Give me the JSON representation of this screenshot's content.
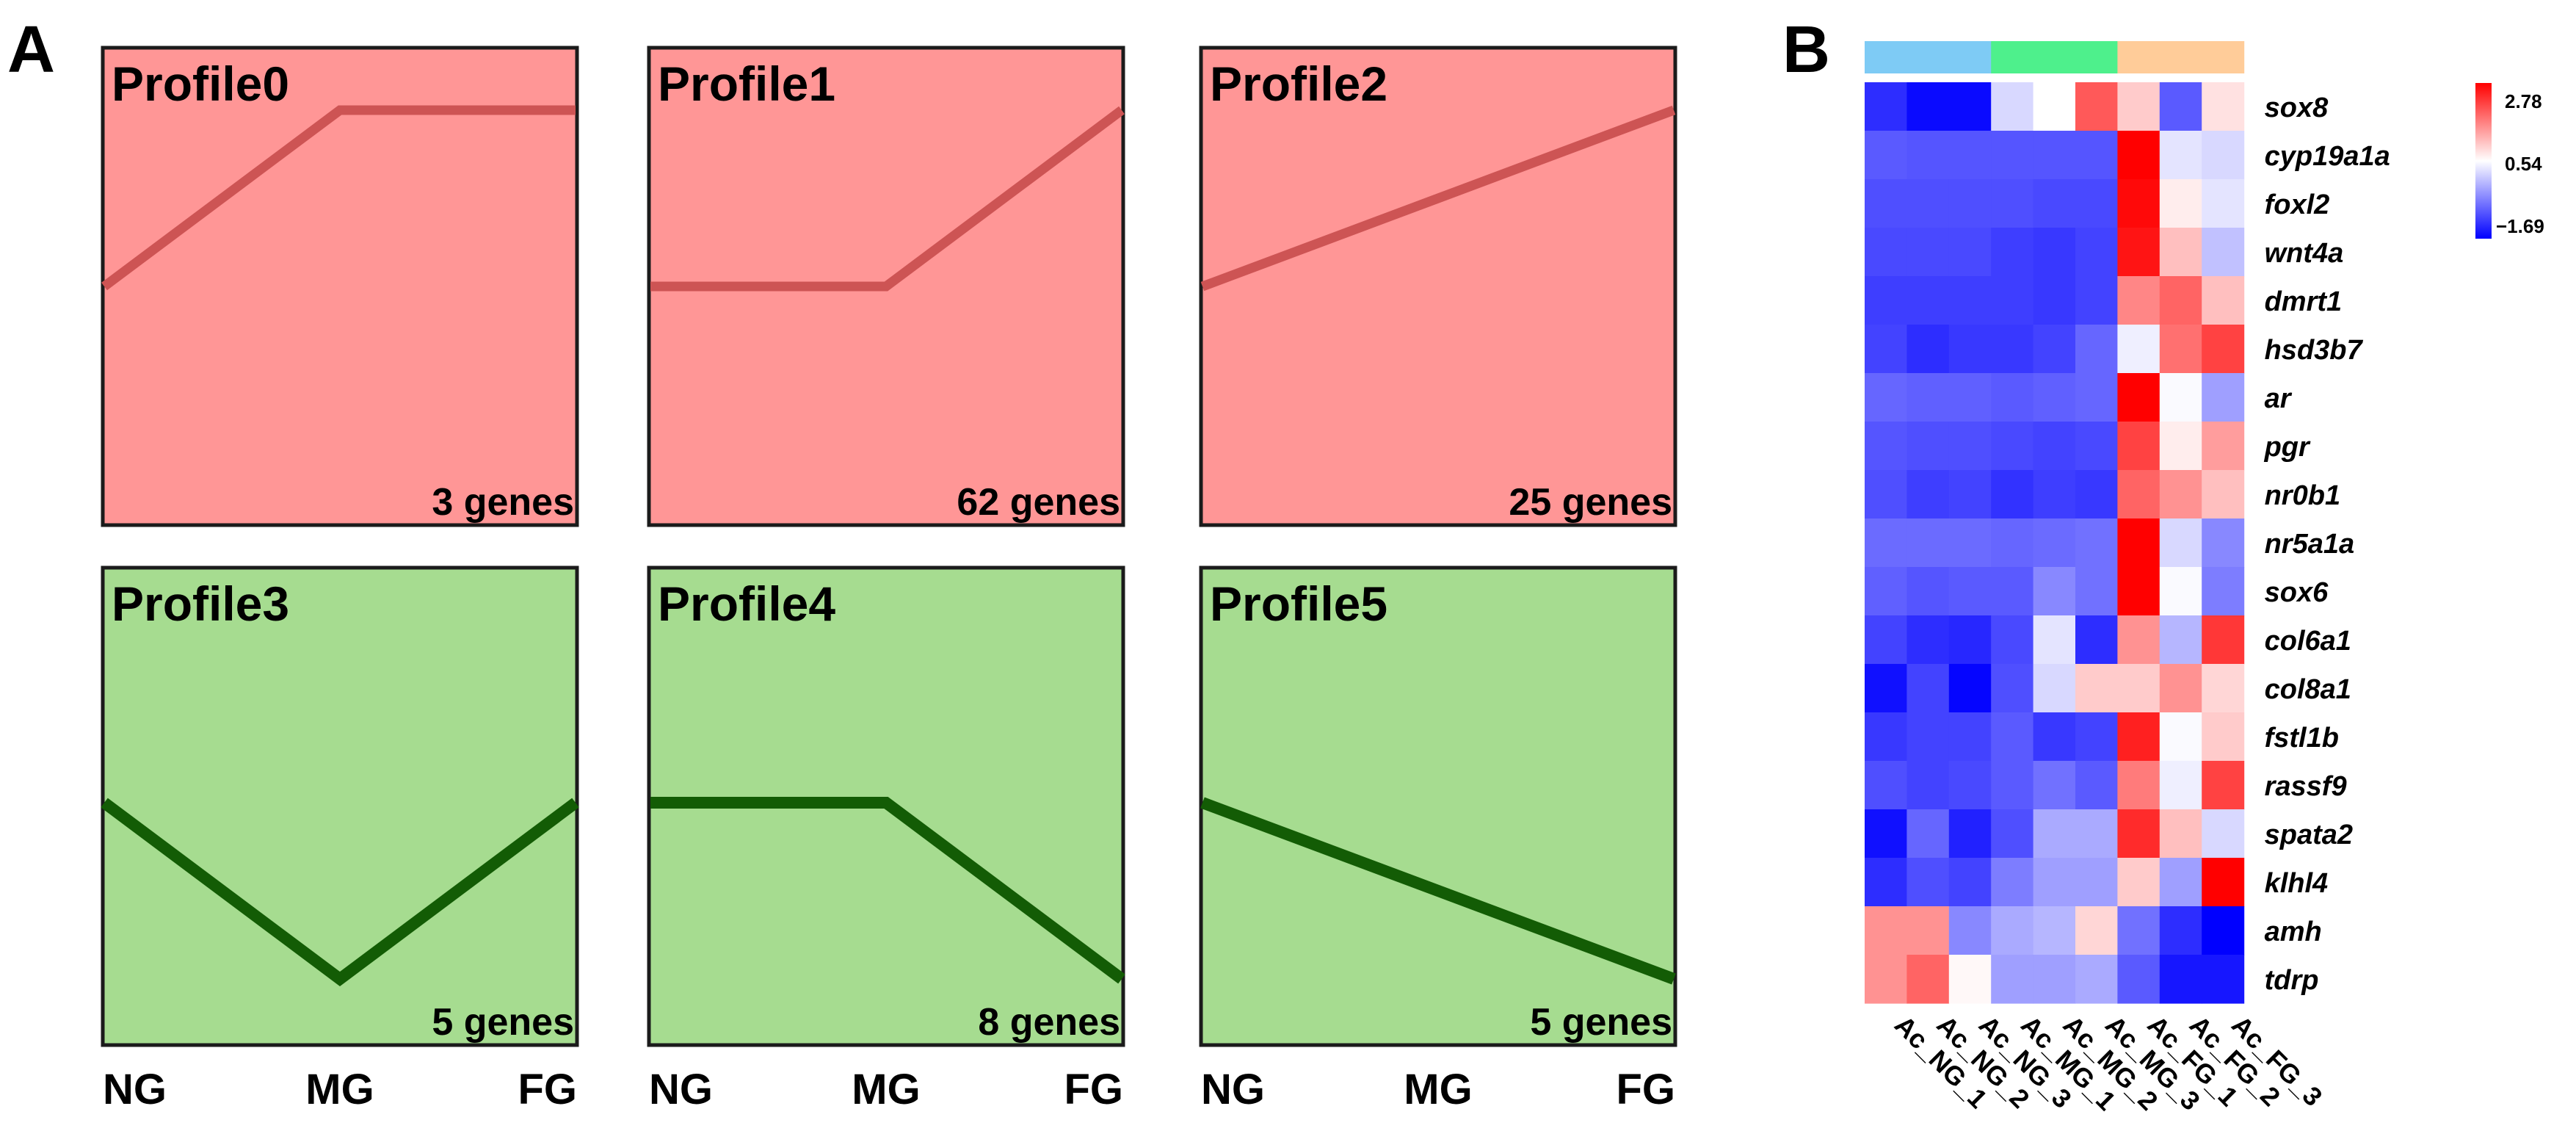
{
  "panels": {
    "a_label": "A",
    "b_label": "B"
  },
  "chart_data": [
    {
      "type": "line",
      "panel": "A",
      "x": [
        "NG",
        "MG",
        "FG"
      ],
      "profiles": [
        {
          "title": "Profile0",
          "count_label": "3 genes",
          "values": [
            0,
            1,
            1
          ],
          "group": "up"
        },
        {
          "title": "Profile1",
          "count_label": "62 genes",
          "values": [
            0,
            0,
            1
          ],
          "group": "up"
        },
        {
          "title": "Profile2",
          "count_label": "25 genes",
          "values": [
            0,
            0.5,
            1
          ],
          "group": "up"
        },
        {
          "title": "Profile3",
          "count_label": "5 genes",
          "values": [
            0,
            -1,
            0
          ],
          "group": "down"
        },
        {
          "title": "Profile4",
          "count_label": "8 genes",
          "values": [
            0,
            0,
            -1
          ],
          "group": "down"
        },
        {
          "title": "Profile5",
          "count_label": "5 genes",
          "values": [
            0,
            -0.5,
            -1
          ],
          "group": "down"
        }
      ],
      "colors": {
        "up_fill": "#ff9696",
        "up_line": "#cd5454",
        "down_fill": "#a6dc90",
        "down_line": "#135c05",
        "frame": "#1b1b1b"
      }
    },
    {
      "type": "heatmap",
      "panel": "B",
      "samples": [
        "Ac_NG_1",
        "Ac_NG_2",
        "Ac_NG_3",
        "Ac_MG_1",
        "Ac_MG_2",
        "Ac_MG_3",
        "Ac_FG_1",
        "Ac_FG_2",
        "Ac_FG_3"
      ],
      "sample_groups": [
        "NG",
        "NG",
        "NG",
        "MG",
        "MG",
        "MG",
        "FG",
        "FG",
        "FG"
      ],
      "group_colors": {
        "NG": "#7ecbf5",
        "MG": "#4ef08c",
        "FG": "#ffcc99"
      },
      "genes": [
        "sox8",
        "cyp19a1a",
        "foxl2",
        "wnt4a",
        "dmrt1",
        "hsd3b7",
        "ar",
        "pgr",
        "nr0b1",
        "nr5a1a",
        "sox6",
        "col6a1",
        "col8a1",
        "fstl1b",
        "rassf9",
        "spata2",
        "klhl4",
        "amh",
        "tdrp"
      ],
      "values": [
        [
          -1.3,
          -1.6,
          -1.6,
          0.2,
          0.54,
          2.0,
          1.0,
          -0.9,
          0.8
        ],
        [
          -0.9,
          -0.95,
          -0.95,
          -0.95,
          -0.95,
          -0.95,
          2.78,
          0.3,
          0.2
        ],
        [
          -1.0,
          -1.0,
          -1.0,
          -1.0,
          -1.05,
          -1.05,
          2.7,
          0.7,
          0.3
        ],
        [
          -1.05,
          -1.05,
          -1.05,
          -1.15,
          -1.2,
          -1.1,
          2.6,
          1.1,
          0.0
        ],
        [
          -1.15,
          -1.15,
          -1.15,
          -1.15,
          -1.2,
          -1.1,
          1.6,
          1.9,
          1.1
        ],
        [
          -1.1,
          -1.3,
          -1.2,
          -1.2,
          -1.1,
          -0.8,
          0.4,
          1.8,
          2.2
        ],
        [
          -0.8,
          -0.85,
          -0.85,
          -0.9,
          -0.85,
          -0.8,
          2.78,
          0.5,
          -0.3
        ],
        [
          -0.95,
          -1.0,
          -1.0,
          -1.05,
          -1.1,
          -1.05,
          2.2,
          0.7,
          1.4
        ],
        [
          -1.0,
          -1.15,
          -1.1,
          -1.25,
          -1.15,
          -1.2,
          1.9,
          1.5,
          1.1
        ],
        [
          -0.75,
          -0.75,
          -0.75,
          -0.8,
          -0.75,
          -0.7,
          2.78,
          0.2,
          -0.5
        ],
        [
          -0.85,
          -0.95,
          -0.9,
          -0.9,
          -0.5,
          -0.7,
          2.78,
          0.5,
          -0.6
        ],
        [
          -1.1,
          -1.3,
          -1.35,
          -1.05,
          0.3,
          -1.3,
          1.5,
          -0.1,
          2.3
        ],
        [
          -1.55,
          -1.1,
          -1.65,
          -1.0,
          0.2,
          1.0,
          1.0,
          1.5,
          0.9
        ],
        [
          -1.2,
          -1.1,
          -1.1,
          -0.9,
          -1.2,
          -1.1,
          2.5,
          0.5,
          1.0
        ],
        [
          -1.0,
          -1.1,
          -1.05,
          -0.9,
          -0.7,
          -0.9,
          1.7,
          0.4,
          2.2
        ],
        [
          -1.55,
          -0.8,
          -1.4,
          -1.0,
          -0.2,
          -0.2,
          2.4,
          1.1,
          0.2
        ],
        [
          -1.3,
          -1.0,
          -1.1,
          -0.6,
          -0.3,
          -0.3,
          1.0,
          -0.3,
          2.78
        ],
        [
          1.5,
          1.5,
          -0.5,
          -0.2,
          -0.1,
          0.9,
          -0.7,
          -1.3,
          -1.69
        ],
        [
          1.5,
          1.9,
          0.6,
          -0.3,
          -0.3,
          -0.2,
          -0.9,
          -1.5,
          -1.5
        ]
      ],
      "scale": {
        "min": -1.69,
        "mid": 0.54,
        "max": 2.78,
        "min_label": "−1.69",
        "mid_label": "0.54",
        "max_label": "2.78"
      },
      "colors": {
        "low": "#0000ff",
        "mid": "#ffffff",
        "high": "#ff0000"
      }
    }
  ]
}
